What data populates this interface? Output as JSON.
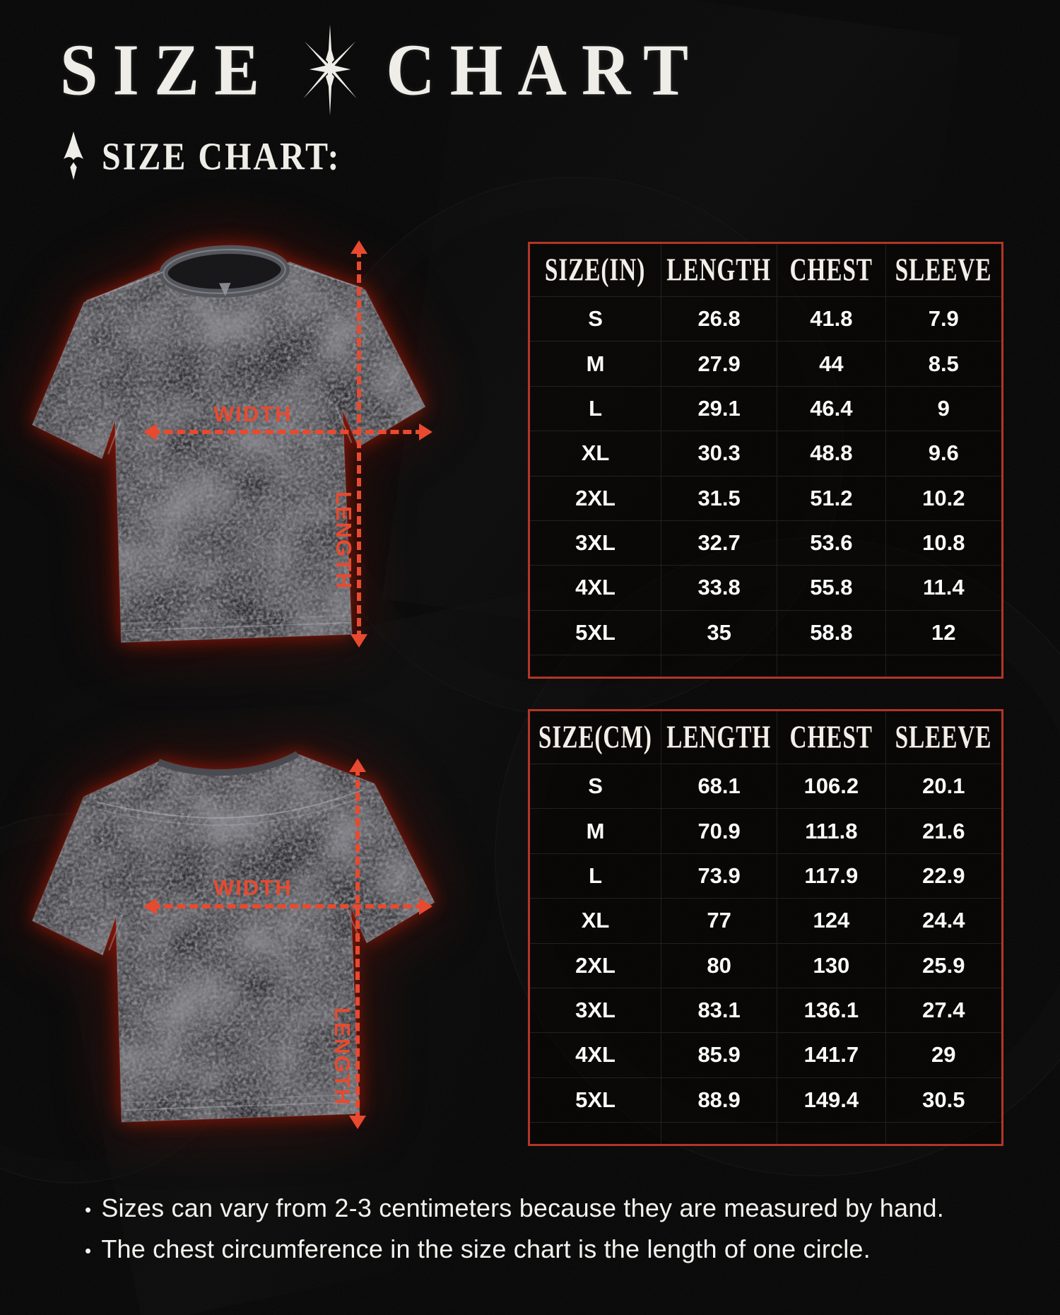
{
  "page": {
    "title_left": "SIZE",
    "title_right": "CHART",
    "subtitle": "SIZE CHART:"
  },
  "icons": {
    "title_divider": "chaos-star-icon",
    "subtitle_marker": "spear-icon"
  },
  "diagram": {
    "width_label": "WIDTH",
    "length_label": "LENGTH",
    "front_shirt": "t-shirt front view, black mineral wash",
    "back_shirt": "t-shirt back view, black mineral wash"
  },
  "colors": {
    "accent_red": "#e84a2f",
    "table_border": "#b43527",
    "background": "#0a0a0a",
    "text": "#f2f0ea"
  },
  "notes": {
    "bullet": "•",
    "items": [
      "Sizes can vary from 2-3 centimeters because they are measured by hand.",
      "The chest circumference in the size chart is the length of one circle."
    ]
  },
  "chart_data": [
    {
      "type": "table",
      "title": "Size chart (inches)",
      "unit": "in",
      "columns": [
        "SIZE(IN)",
        "LENGTH",
        "CHEST",
        "SLEEVE"
      ],
      "rows": [
        [
          "S",
          "26.8",
          "41.8",
          "7.9"
        ],
        [
          "M",
          "27.9",
          "44",
          "8.5"
        ],
        [
          "L",
          "29.1",
          "46.4",
          "9"
        ],
        [
          "XL",
          "30.3",
          "48.8",
          "9.6"
        ],
        [
          "2XL",
          "31.5",
          "51.2",
          "10.2"
        ],
        [
          "3XL",
          "32.7",
          "53.6",
          "10.8"
        ],
        [
          "4XL",
          "33.8",
          "55.8",
          "11.4"
        ],
        [
          "5XL",
          "35",
          "58.8",
          "12"
        ]
      ]
    },
    {
      "type": "table",
      "title": "Size chart (centimeters)",
      "unit": "cm",
      "columns": [
        "SIZE(CM)",
        "LENGTH",
        "CHEST",
        "SLEEVE"
      ],
      "rows": [
        [
          "S",
          "68.1",
          "106.2",
          "20.1"
        ],
        [
          "M",
          "70.9",
          "111.8",
          "21.6"
        ],
        [
          "L",
          "73.9",
          "117.9",
          "22.9"
        ],
        [
          "XL",
          "77",
          "124",
          "24.4"
        ],
        [
          "2XL",
          "80",
          "130",
          "25.9"
        ],
        [
          "3XL",
          "83.1",
          "136.1",
          "27.4"
        ],
        [
          "4XL",
          "85.9",
          "141.7",
          "29"
        ],
        [
          "5XL",
          "88.9",
          "149.4",
          "30.5"
        ]
      ]
    }
  ]
}
